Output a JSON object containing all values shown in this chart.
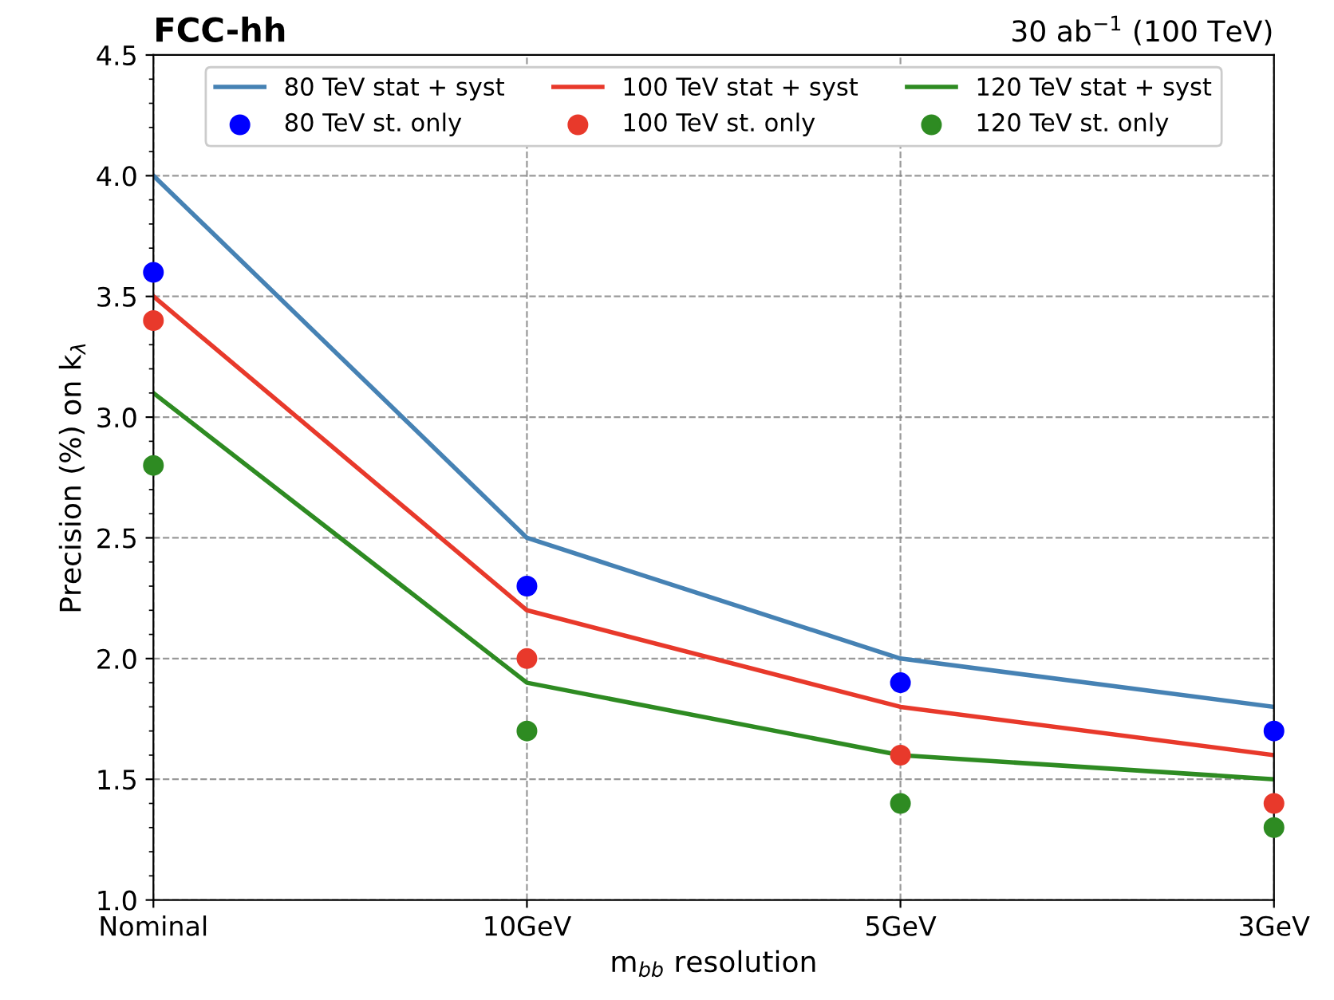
{
  "chart_data": {
    "type": "line",
    "title": "FCC-hh",
    "subtitle": "30 ab$^{−1}$ (100 TeV)",
    "xlabel": "m$_{bb}$ resolution",
    "ylabel": "Precision (%) on k$_{λ}$",
    "categories": [
      "Nominal",
      "10GeV",
      "5GeV",
      "3GeV"
    ],
    "series": [
      {
        "name": "80 TeV stat + syst",
        "color": "#4682b4",
        "values": [
          4.0,
          2.5,
          2.0,
          1.8
        ]
      },
      {
        "name": "80 TeV st. only",
        "type": "scatter",
        "marker": "circle",
        "color": "#0000ff",
        "values": [
          3.6,
          2.3,
          1.9,
          1.7
        ]
      },
      {
        "name": "100 TeV stat + syst",
        "color": "#e8392b",
        "values": [
          3.5,
          2.2,
          1.8,
          1.6
        ]
      },
      {
        "name": "100 TeV st. only",
        "type": "scatter",
        "marker": "circle",
        "color": "#e8392b",
        "values": [
          3.4,
          2.0,
          1.6,
          1.4
        ]
      },
      {
        "name": "120 TeV stat + syst",
        "color": "#2e8b22",
        "values": [
          3.1,
          1.9,
          1.6,
          1.5
        ]
      },
      {
        "name": "120 TeV st. only",
        "type": "scatter",
        "marker": "circle",
        "color": "#2e8b22",
        "values": [
          2.8,
          1.7,
          1.4,
          1.3
        ]
      }
    ],
    "ylim": [
      1.0,
      4.5
    ],
    "yticks": [
      {
        "value": 1,
        "label": "1.0"
      },
      1.5,
      {
        "value": 2,
        "label": "2.0"
      },
      2.5,
      {
        "value": 3,
        "label": "3.0"
      },
      3.5,
      {
        "value": 4,
        "label": "4.0"
      },
      4.5
    ],
    "grid": true,
    "legend": "top",
    "line_style": "solid"
  }
}
